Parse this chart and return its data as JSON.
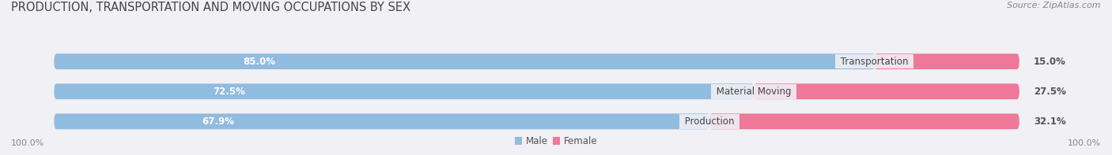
{
  "title": "PRODUCTION, TRANSPORTATION AND MOVING OCCUPATIONS BY SEX",
  "source": "Source: ZipAtlas.com",
  "categories": [
    "Transportation",
    "Material Moving",
    "Production"
  ],
  "male_pct": [
    85.0,
    72.5,
    67.9
  ],
  "female_pct": [
    15.0,
    27.5,
    32.1
  ],
  "male_color": "#90bce0",
  "female_color": "#f07898",
  "bar_bg_color": "#e2e2ec",
  "title_fontsize": 10.5,
  "source_fontsize": 8,
  "bar_label_fontsize": 8.5,
  "cat_label_fontsize": 8.5,
  "axis_label_fontsize": 8,
  "background_color": "#f0f0f5"
}
